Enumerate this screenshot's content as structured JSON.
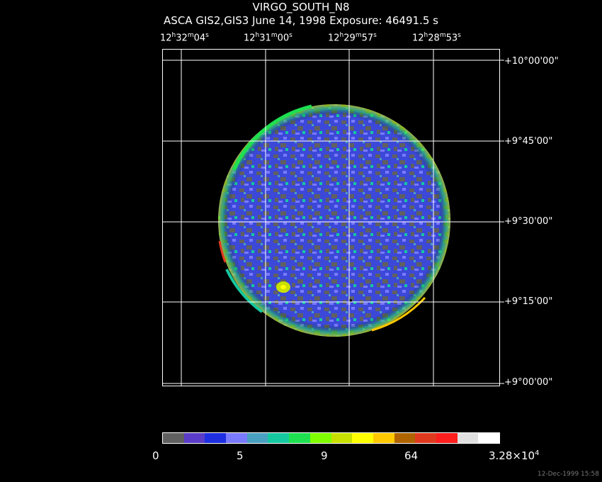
{
  "title": "VIRGO_SOUTH_N8",
  "subtitle": "ASCA GIS2,GIS3 June 14, 1998 Exposure: 46491.5 s",
  "ra_labels": [
    {
      "h": "12",
      "m": "32",
      "s": "04"
    },
    {
      "h": "12",
      "m": "31",
      "s": "00"
    },
    {
      "h": "12",
      "m": "29",
      "s": "57"
    },
    {
      "h": "12",
      "m": "28",
      "s": "53"
    }
  ],
  "dec_labels": [
    "+10°00'00\"",
    "+9°45'00\"",
    "+9°30'00\"",
    "+9°15'00\"",
    "+9°00'00\""
  ],
  "colorbar": {
    "labels": [
      "0",
      "5",
      "9",
      "64",
      "3.28×10"
    ],
    "exponent": "4",
    "colors": [
      "#606060",
      "#5a3cc8",
      "#1e2ee0",
      "#7a7aff",
      "#4aa0c0",
      "#16c8a0",
      "#1ee050",
      "#80ff00",
      "#c8e000",
      "#ffff00",
      "#ffc800",
      "#b06400",
      "#e03a1e",
      "#ff1e1e",
      "#e0e0e0",
      "#ffffff"
    ]
  },
  "datestamp": "12-Dec-1999 15:58"
}
